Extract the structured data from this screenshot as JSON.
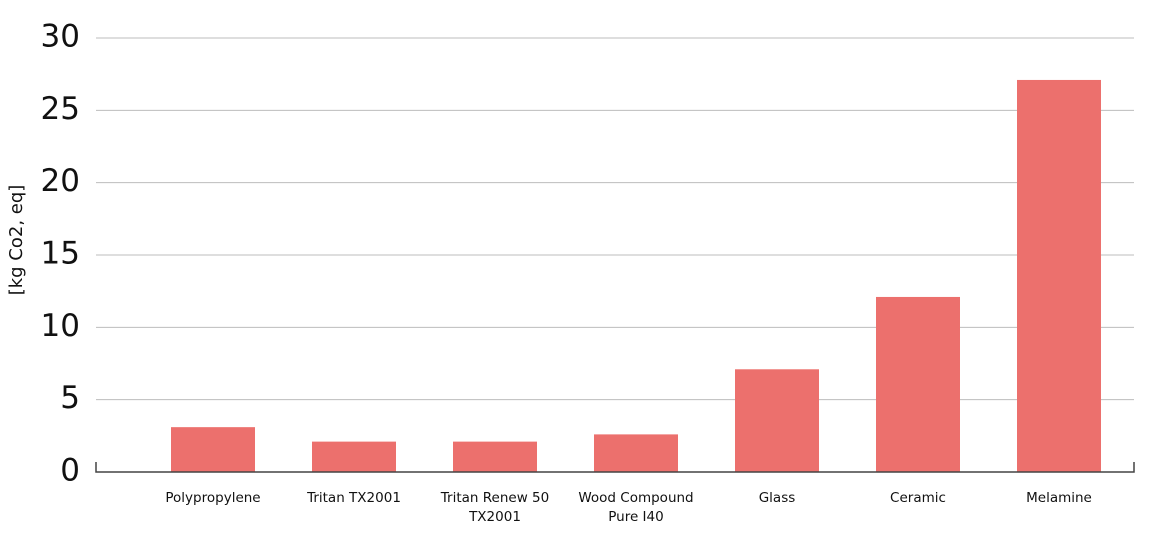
{
  "chart_data": {
    "type": "bar",
    "y_label": "[kg Co2, eq]",
    "categories": [
      "Polypropylene",
      "Tritan TX2001",
      "Tritan Renew 50 TX2001",
      "Wood Compound Pure I40",
      "Glass",
      "Ceramic",
      "Melamine"
    ],
    "values": [
      3.1,
      2.1,
      2.1,
      2.6,
      7.1,
      12.1,
      27.1
    ],
    "color": "#ec706d",
    "ylim": [
      0,
      30
    ],
    "yticks": [
      0,
      5,
      10,
      15,
      20,
      25,
      30
    ],
    "grid": true
  }
}
